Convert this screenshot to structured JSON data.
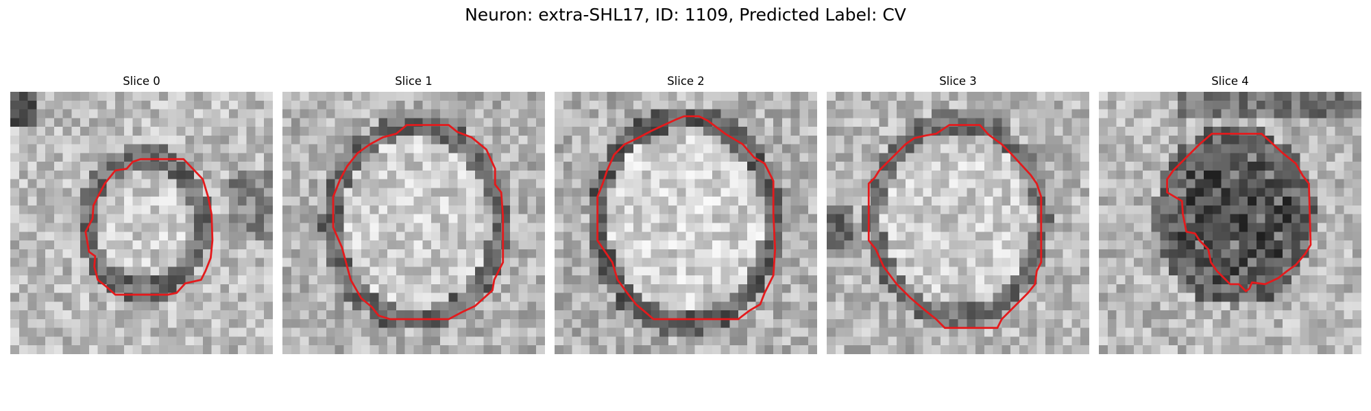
{
  "figure": {
    "title": "Neuron: extra-SHL17, ID: 1109, Predicted Label: CV",
    "outline_color": "#e41a1c",
    "colormap": "grayscale",
    "slices": [
      {
        "title": "Slice 0",
        "mean_intensity": 0.72,
        "contrast_region": "dark ring"
      },
      {
        "title": "Slice 1",
        "mean_intensity": 0.7,
        "contrast_region": "dark ring"
      },
      {
        "title": "Slice 2",
        "mean_intensity": 0.69,
        "contrast_region": "dark ring"
      },
      {
        "title": "Slice 3",
        "mean_intensity": 0.71,
        "contrast_region": "dark ring"
      },
      {
        "title": "Slice 4",
        "mean_intensity": 0.63,
        "contrast_region": "dark interior"
      }
    ]
  }
}
